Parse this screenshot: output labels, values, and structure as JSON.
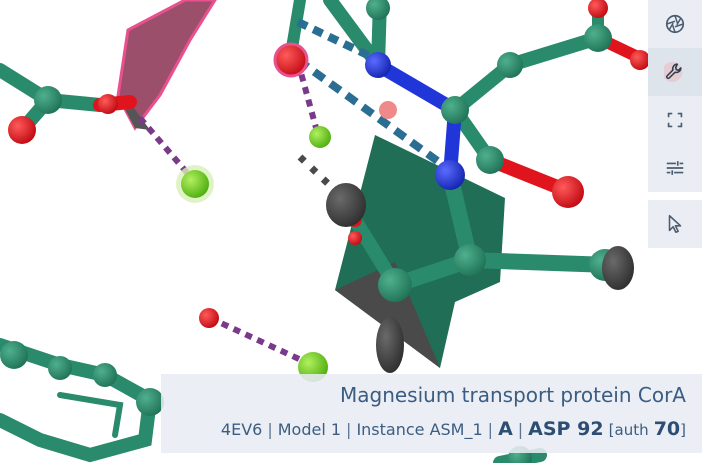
{
  "viewer": {
    "structure_colors": {
      "carbon": "#2a8a6c",
      "oxygen": "#e0141c",
      "nitrogen": "#2036d8",
      "magnesium": "#6fd61e",
      "highlight": "#e8508e",
      "hydrogen_bond": "#2b6e94",
      "metal_contact": "#7a3a8a",
      "sheet": "#20705a",
      "shadow": "#4a4a4a"
    }
  },
  "toolbar": {
    "buttons": [
      {
        "name": "screenshot",
        "icon": "aperture-icon"
      },
      {
        "name": "tools",
        "icon": "wrench-icon",
        "active": true
      },
      {
        "name": "expand",
        "icon": "fullscreen-icon"
      },
      {
        "name": "settings",
        "icon": "sliders-icon"
      },
      {
        "name": "selection-mode",
        "icon": "cursor-icon"
      }
    ]
  },
  "info": {
    "title": "Magnesium transport protein CorA",
    "pdb_id": "4EV6",
    "model": "Model 1",
    "instance": "Instance ASM_1",
    "chain": "A",
    "residue": "ASP 92",
    "auth_label": "auth",
    "auth_number": "70"
  }
}
